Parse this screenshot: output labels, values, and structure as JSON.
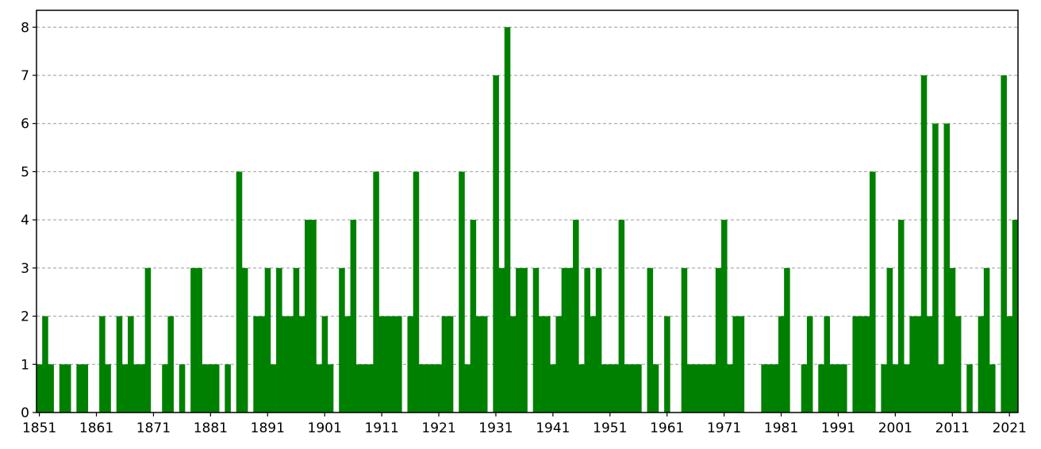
{
  "chart_data": {
    "type": "bar",
    "title": "",
    "xlabel": "",
    "ylabel": "",
    "x_start": 1851,
    "x": [
      1851,
      1852,
      1853,
      1854,
      1855,
      1856,
      1857,
      1858,
      1859,
      1860,
      1861,
      1862,
      1863,
      1864,
      1865,
      1866,
      1867,
      1868,
      1869,
      1870,
      1871,
      1872,
      1873,
      1874,
      1875,
      1876,
      1877,
      1878,
      1879,
      1880,
      1881,
      1882,
      1883,
      1884,
      1885,
      1886,
      1887,
      1888,
      1889,
      1890,
      1891,
      1892,
      1893,
      1894,
      1895,
      1896,
      1897,
      1898,
      1899,
      1900,
      1901,
      1902,
      1903,
      1904,
      1905,
      1906,
      1907,
      1908,
      1909,
      1910,
      1911,
      1912,
      1913,
      1914,
      1915,
      1916,
      1917,
      1918,
      1919,
      1920,
      1921,
      1922,
      1923,
      1924,
      1925,
      1926,
      1927,
      1928,
      1929,
      1930,
      1931,
      1932,
      1933,
      1934,
      1935,
      1936,
      1937,
      1938,
      1939,
      1940,
      1941,
      1942,
      1943,
      1944,
      1945,
      1946,
      1947,
      1948,
      1949,
      1950,
      1951,
      1952,
      1953,
      1954,
      1955,
      1956,
      1957,
      1958,
      1959,
      1960,
      1961,
      1962,
      1963,
      1964,
      1965,
      1966,
      1967,
      1968,
      1969,
      1970,
      1971,
      1972,
      1973,
      1974,
      1975,
      1976,
      1977,
      1978,
      1979,
      1980,
      1981,
      1982,
      1983,
      1984,
      1985,
      1986,
      1987,
      1988,
      1989,
      1990,
      1991,
      1992,
      1993,
      1994,
      1995,
      1996,
      1997,
      1998,
      1999,
      2000,
      2001,
      2002,
      2003,
      2004,
      2005,
      2006,
      2007,
      2008,
      2009,
      2010,
      2011,
      2012,
      2013,
      2014,
      2015,
      2016,
      2017,
      2018,
      2019,
      2020,
      2021,
      2022
    ],
    "values": [
      1,
      2,
      1,
      0,
      1,
      1,
      0,
      1,
      1,
      0,
      0,
      2,
      1,
      0,
      2,
      1,
      2,
      1,
      1,
      3,
      0,
      0,
      1,
      2,
      0,
      1,
      0,
      3,
      3,
      1,
      1,
      1,
      0,
      1,
      0,
      5,
      3,
      0,
      2,
      2,
      3,
      1,
      3,
      2,
      2,
      3,
      2,
      4,
      4,
      1,
      2,
      1,
      0,
      3,
      2,
      4,
      1,
      1,
      1,
      5,
      2,
      2,
      2,
      2,
      0,
      2,
      5,
      1,
      1,
      1,
      1,
      2,
      2,
      0,
      5,
      1,
      4,
      2,
      2,
      0,
      7,
      3,
      8,
      2,
      3,
      3,
      0,
      3,
      2,
      2,
      1,
      2,
      3,
      3,
      4,
      1,
      3,
      2,
      3,
      1,
      1,
      1,
      4,
      1,
      1,
      1,
      0,
      3,
      1,
      0,
      2,
      0,
      0,
      3,
      1,
      1,
      1,
      1,
      1,
      3,
      4,
      1,
      2,
      2,
      0,
      0,
      0,
      1,
      1,
      1,
      2,
      3,
      0,
      0,
      1,
      2,
      0,
      1,
      2,
      1,
      1,
      1,
      0,
      2,
      2,
      2,
      5,
      0,
      1,
      3,
      1,
      4,
      1,
      2,
      2,
      7,
      2,
      6,
      1,
      6,
      3,
      2,
      0,
      1,
      0,
      2,
      3,
      1,
      0,
      7,
      2,
      4
    ],
    "xticks": [
      "1851",
      "1861",
      "1871",
      "1881",
      "1891",
      "1901",
      "1911",
      "1921",
      "1931",
      "1941",
      "1951",
      "1961",
      "1971",
      "1981",
      "1991",
      "2001",
      "2011",
      "2021"
    ],
    "yticks": [
      "0",
      "1",
      "2",
      "3",
      "4",
      "5",
      "6",
      "7",
      "8"
    ],
    "xlim": [
      1850.5,
      2022.5
    ],
    "ylim": [
      0,
      8.35
    ],
    "grid": "horizontal dashed",
    "colors": {
      "bar": "#008000",
      "grid": "#9a9a9a",
      "axis": "#000000"
    }
  }
}
